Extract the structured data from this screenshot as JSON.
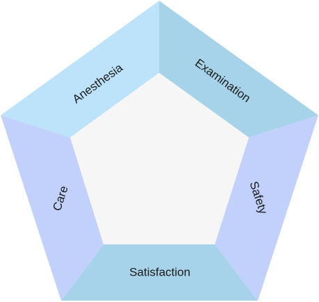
{
  "segments": [
    {
      "id": "anesthesia",
      "label": "Anesthesia",
      "color": "#bde3fb"
    },
    {
      "id": "examination",
      "label": "Examination",
      "color": "#a7d3ea"
    },
    {
      "id": "safety",
      "label": "Safety",
      "color": "#c1d1fb"
    },
    {
      "id": "satisfaction",
      "label": "Satisfaction",
      "color": "#a7d3ea"
    },
    {
      "id": "care",
      "label": "Care",
      "color": "#c1d1fb"
    }
  ],
  "center_color": "#f6f6f6"
}
